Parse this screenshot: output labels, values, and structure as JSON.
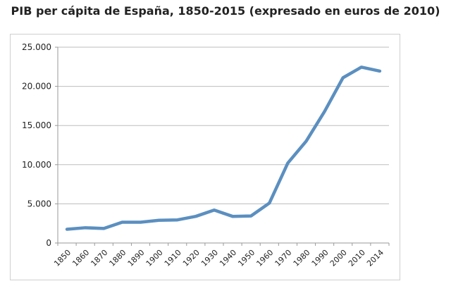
{
  "chart_data": {
    "type": "line",
    "title": "PIB per cápita de España, 1850-2015 (expresado en euros de 2010)",
    "xlabel": "",
    "ylabel": "",
    "categories": [
      "1850",
      "1860",
      "1870",
      "1880",
      "1890",
      "1900",
      "1910",
      "1920",
      "1930",
      "1940",
      "1950",
      "1960",
      "1970",
      "1980",
      "1990",
      "2000",
      "2010",
      "2014"
    ],
    "series": [
      {
        "values": [
          1750,
          1950,
          1850,
          2650,
          2650,
          2900,
          2950,
          3400,
          4200,
          3400,
          3450,
          5100,
          10200,
          13000,
          16800,
          21100,
          22450,
          21950
        ]
      }
    ],
    "ylim": [
      0,
      25000
    ],
    "yticks": [
      0,
      5000,
      10000,
      15000,
      20000,
      25000
    ],
    "ytick_labels": [
      "0",
      "5.000",
      "10.000",
      "15.000",
      "20.000",
      "25.000"
    ],
    "grid": "horizontal",
    "legend": "none",
    "colors": {
      "line": "#5b8fc0",
      "grid": "#bdbdbd",
      "axis": "#9a9a9a"
    }
  }
}
